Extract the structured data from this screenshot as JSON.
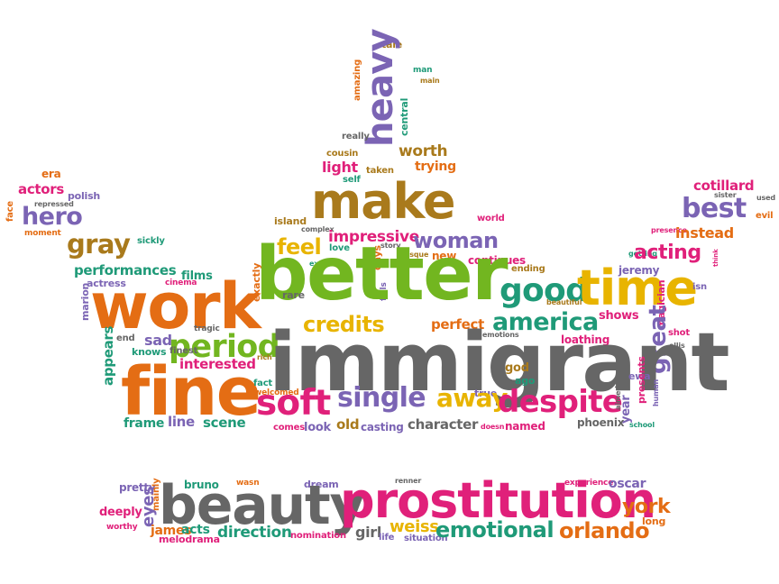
{
  "palette": {
    "purple": "#7b64b4",
    "pink": "#e0207a",
    "orange": "#e46d14",
    "yellow": "#e8b400",
    "green": "#72b620",
    "teal": "#1f9a78",
    "brown": "#a97a1c",
    "gray": "#666666"
  },
  "words": [
    {
      "text": "tale",
      "color": "brown"
    },
    {
      "text": "amazing",
      "color": "orange"
    },
    {
      "text": "heavy",
      "color": "purple"
    },
    {
      "text": "man",
      "color": "teal"
    },
    {
      "text": "main",
      "color": "brown"
    },
    {
      "text": "central",
      "color": "teal"
    },
    {
      "text": "really",
      "color": "gray"
    },
    {
      "text": "cousin",
      "color": "brown"
    },
    {
      "text": "worth",
      "color": "brown"
    },
    {
      "text": "light",
      "color": "pink"
    },
    {
      "text": "taken",
      "color": "brown"
    },
    {
      "text": "trying",
      "color": "orange"
    },
    {
      "text": "self",
      "color": "teal"
    },
    {
      "text": "make",
      "color": "brown"
    },
    {
      "text": "era",
      "color": "orange"
    },
    {
      "text": "actors",
      "color": "pink"
    },
    {
      "text": "polish",
      "color": "purple"
    },
    {
      "text": "repressed",
      "color": "gray"
    },
    {
      "text": "face",
      "color": "orange"
    },
    {
      "text": "hero",
      "color": "purple"
    },
    {
      "text": "moment",
      "color": "orange"
    },
    {
      "text": "gray",
      "color": "brown"
    },
    {
      "text": "sickly",
      "color": "teal"
    },
    {
      "text": "island",
      "color": "brown"
    },
    {
      "text": "complex",
      "color": "gray"
    },
    {
      "text": "world",
      "color": "pink"
    },
    {
      "text": "feel",
      "color": "yellow"
    },
    {
      "text": "impressive",
      "color": "pink"
    },
    {
      "text": "love",
      "color": "teal"
    },
    {
      "text": "story",
      "color": "gray"
    },
    {
      "text": "days",
      "color": "orange"
    },
    {
      "text": "esque",
      "color": "brown"
    },
    {
      "text": "woman",
      "color": "purple"
    },
    {
      "text": "new",
      "color": "orange"
    },
    {
      "text": "continues",
      "color": "pink"
    },
    {
      "text": "ending",
      "color": "brown"
    },
    {
      "text": "cotillard",
      "color": "pink"
    },
    {
      "text": "sister",
      "color": "gray"
    },
    {
      "text": "used",
      "color": "gray"
    },
    {
      "text": "best",
      "color": "purple"
    },
    {
      "text": "evil",
      "color": "orange"
    },
    {
      "text": "presence",
      "color": "pink"
    },
    {
      "text": "instead",
      "color": "orange"
    },
    {
      "text": "getting",
      "color": "teal"
    },
    {
      "text": "think",
      "color": "pink"
    },
    {
      "text": "acting",
      "color": "pink"
    },
    {
      "text": "performances",
      "color": "teal"
    },
    {
      "text": "films",
      "color": "teal"
    },
    {
      "text": "actress",
      "color": "purple"
    },
    {
      "text": "cinema",
      "color": "pink"
    },
    {
      "text": "exactly",
      "color": "orange"
    },
    {
      "text": "excellent",
      "color": "teal"
    },
    {
      "text": "jeremy",
      "color": "purple"
    },
    {
      "text": "fails",
      "color": "purple"
    },
    {
      "text": "better",
      "color": "green"
    },
    {
      "text": "work",
      "color": "orange"
    },
    {
      "text": "good",
      "color": "teal"
    },
    {
      "text": "time",
      "color": "yellow"
    },
    {
      "text": "magician",
      "color": "pink"
    },
    {
      "text": "isn",
      "color": "purple"
    },
    {
      "text": "marion",
      "color": "purple"
    },
    {
      "text": "rare",
      "color": "gray"
    },
    {
      "text": "credits",
      "color": "yellow"
    },
    {
      "text": "beautiful",
      "color": "brown"
    },
    {
      "text": "tragic",
      "color": "gray"
    },
    {
      "text": "end",
      "color": "gray"
    },
    {
      "text": "sad",
      "color": "purple"
    },
    {
      "text": "knows",
      "color": "teal"
    },
    {
      "text": "period",
      "color": "green"
    },
    {
      "text": "perfect",
      "color": "orange"
    },
    {
      "text": "america",
      "color": "teal"
    },
    {
      "text": "emotions",
      "color": "gray"
    },
    {
      "text": "shows",
      "color": "pink"
    },
    {
      "text": "shot",
      "color": "pink"
    },
    {
      "text": "ellis",
      "color": "gray"
    },
    {
      "text": "appears",
      "color": "teal"
    },
    {
      "text": "finest",
      "color": "gray"
    },
    {
      "text": "great",
      "color": "purple"
    },
    {
      "text": "loathing",
      "color": "pink"
    },
    {
      "text": "rich",
      "color": "brown"
    },
    {
      "text": "interested",
      "color": "pink"
    },
    {
      "text": "immigrant",
      "color": "gray"
    },
    {
      "text": "god",
      "color": "brown"
    },
    {
      "text": "ago",
      "color": "teal"
    },
    {
      "text": "ewa",
      "color": "purple"
    },
    {
      "text": "presents",
      "color": "pink"
    },
    {
      "text": "human",
      "color": "purple"
    },
    {
      "text": "fine",
      "color": "orange"
    },
    {
      "text": "fact",
      "color": "teal"
    },
    {
      "text": "welcomed",
      "color": "orange"
    },
    {
      "text": "soft",
      "color": "pink"
    },
    {
      "text": "single",
      "color": "purple"
    },
    {
      "text": "true",
      "color": "purple"
    },
    {
      "text": "away",
      "color": "yellow"
    },
    {
      "text": "despite",
      "color": "pink"
    },
    {
      "text": "aimed",
      "color": "gray"
    },
    {
      "text": "year",
      "color": "purple"
    },
    {
      "text": "school",
      "color": "teal"
    },
    {
      "text": "frame",
      "color": "teal"
    },
    {
      "text": "line",
      "color": "purple"
    },
    {
      "text": "scene",
      "color": "teal"
    },
    {
      "text": "comes",
      "color": "pink"
    },
    {
      "text": "look",
      "color": "purple"
    },
    {
      "text": "old",
      "color": "brown"
    },
    {
      "text": "casting",
      "color": "purple"
    },
    {
      "text": "character",
      "color": "gray"
    },
    {
      "text": "doesn",
      "color": "pink"
    },
    {
      "text": "named",
      "color": "pink"
    },
    {
      "text": "phoenix",
      "color": "gray"
    },
    {
      "text": "pretty",
      "color": "purple"
    },
    {
      "text": "bruno",
      "color": "teal"
    },
    {
      "text": "wasn",
      "color": "orange"
    },
    {
      "text": "dream",
      "color": "purple"
    },
    {
      "text": "renner",
      "color": "gray"
    },
    {
      "text": "experience",
      "color": "pink"
    },
    {
      "text": "oscar",
      "color": "purple"
    },
    {
      "text": "deeply",
      "color": "pink"
    },
    {
      "text": "mainly",
      "color": "orange"
    },
    {
      "text": "eyes",
      "color": "purple"
    },
    {
      "text": "beauty",
      "color": "gray"
    },
    {
      "text": "prostitution",
      "color": "pink"
    },
    {
      "text": "york",
      "color": "orange"
    },
    {
      "text": "long",
      "color": "orange"
    },
    {
      "text": "worthy",
      "color": "pink"
    },
    {
      "text": "james",
      "color": "orange"
    },
    {
      "text": "acts",
      "color": "teal"
    },
    {
      "text": "melodrama",
      "color": "pink"
    },
    {
      "text": "direction",
      "color": "teal"
    },
    {
      "text": "nomination",
      "color": "pink"
    },
    {
      "text": "girl",
      "color": "gray"
    },
    {
      "text": "life",
      "color": "purple"
    },
    {
      "text": "weiss",
      "color": "yellow"
    },
    {
      "text": "situation",
      "color": "purple"
    },
    {
      "text": "emotional",
      "color": "teal"
    },
    {
      "text": "orlando",
      "color": "orange"
    }
  ]
}
